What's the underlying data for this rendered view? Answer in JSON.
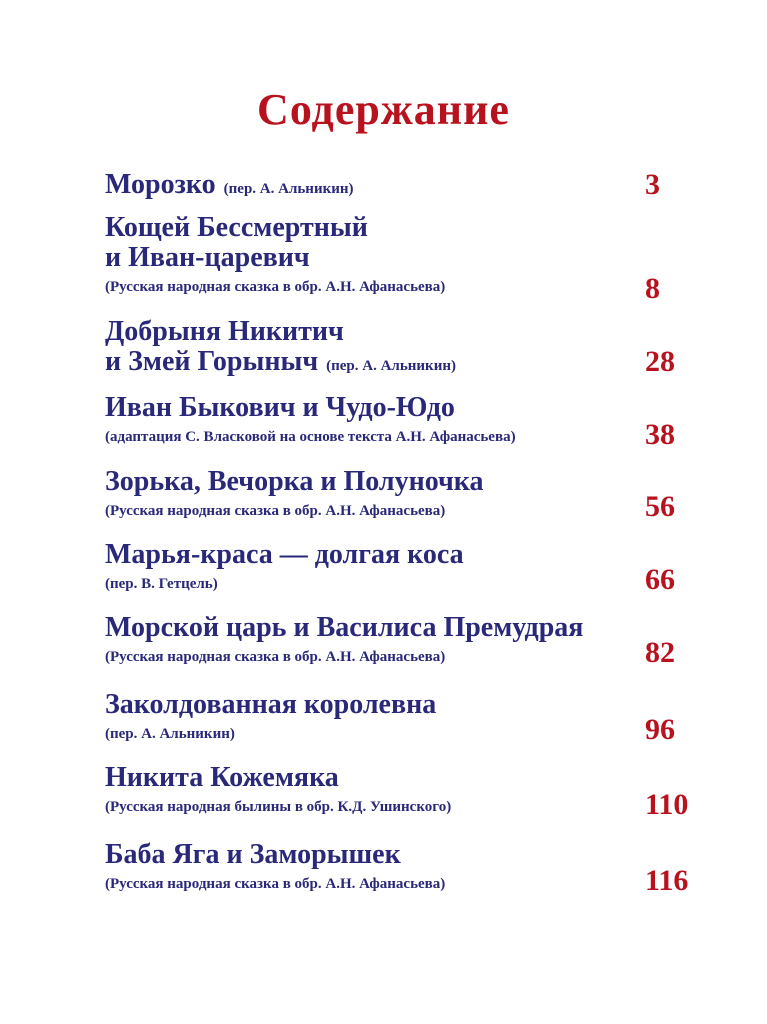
{
  "heading": "Содержание",
  "colors": {
    "title": "#2a2878",
    "accent": "#b8121f"
  },
  "entries": [
    {
      "title": [
        "Морозко"
      ],
      "inline_note": "(пер. А. Альникин)",
      "note": "",
      "page": "3"
    },
    {
      "title": [
        "Кощей Бессмертный",
        "и Иван-царевич"
      ],
      "inline_note": "",
      "note": "(Русская народная сказка в обр. А.Н. Афанасьева)",
      "page": "8"
    },
    {
      "title": [
        "Добрыня Никитич",
        "и Змей Горыныч"
      ],
      "inline_note": "(пер. А. Альникин)",
      "note": "",
      "page": "28"
    },
    {
      "title": [
        "Иван Быкович и Чудо-Юдо"
      ],
      "inline_note": "",
      "note": "(адаптация С. Власковой на основе текста А.Н. Афанасьева)",
      "page": "38"
    },
    {
      "title": [
        "Зорька, Вечорка и Полуночка"
      ],
      "inline_note": "",
      "note": "(Русская народная сказка в обр. А.Н. Афанасьева)",
      "page": "56"
    },
    {
      "title": [
        "Марья-краса — долгая коса"
      ],
      "inline_note": "",
      "note": "(пер. В. Гетцель)",
      "page": "66"
    },
    {
      "title": [
        "Морской царь и Василиса Премудрая"
      ],
      "inline_note": "",
      "note": "(Русская народная сказка в обр. А.Н. Афанасьева)",
      "page": "82"
    },
    {
      "title": [
        "Заколдованная королевна"
      ],
      "inline_note": "",
      "note": "(пер. А. Альникин)",
      "page": "96"
    },
    {
      "title": [
        "Никита Кожемяка"
      ],
      "inline_note": "",
      "note": "(Русская народная былины в обр. К.Д. Ушинского)",
      "page": "110"
    },
    {
      "title": [
        "Баба Яга и Заморышек"
      ],
      "inline_note": "",
      "note": "(Русская народная сказка в обр. А.Н. Афанасьева)",
      "page": "116"
    }
  ]
}
